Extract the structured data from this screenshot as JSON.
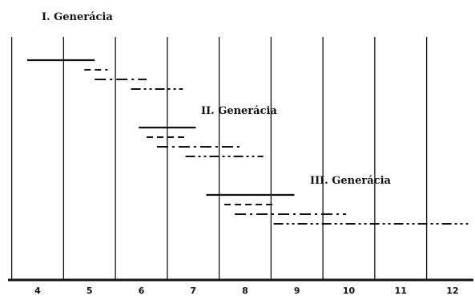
{
  "diagram": {
    "axis": {
      "labels": [
        "4",
        "5",
        "6",
        "7",
        "8",
        "9",
        "10",
        "11",
        "12"
      ],
      "divider_line_color": "#111111"
    },
    "generations": [
      {
        "title": "I. Generácia",
        "bars": [
          {
            "style": "solid",
            "start": 3.8,
            "end": 5.1
          },
          {
            "style": "dashed",
            "start": 4.9,
            "end": 5.35
          },
          {
            "style": "dashdot",
            "start": 5.1,
            "end": 6.1
          },
          {
            "style": "dashdotdot",
            "start": 5.8,
            "end": 6.8
          }
        ]
      },
      {
        "title": "II. Generácia",
        "bars": [
          {
            "style": "solid",
            "start": 5.95,
            "end": 7.05
          },
          {
            "style": "dashed",
            "start": 6.1,
            "end": 6.9
          },
          {
            "style": "dashdot",
            "start": 6.3,
            "end": 7.95
          },
          {
            "style": "dashdotdot",
            "start": 6.85,
            "end": 8.35
          }
        ]
      },
      {
        "title": "III. Generácia",
        "bars": [
          {
            "style": "solid",
            "start": 7.25,
            "end": 8.95
          },
          {
            "style": "dashed",
            "start": 7.6,
            "end": 8.6
          },
          {
            "style": "dashdot",
            "start": 7.8,
            "end": 9.95
          },
          {
            "style": "dashdotdot",
            "start": 8.55,
            "end": 12.3
          }
        ]
      }
    ]
  }
}
